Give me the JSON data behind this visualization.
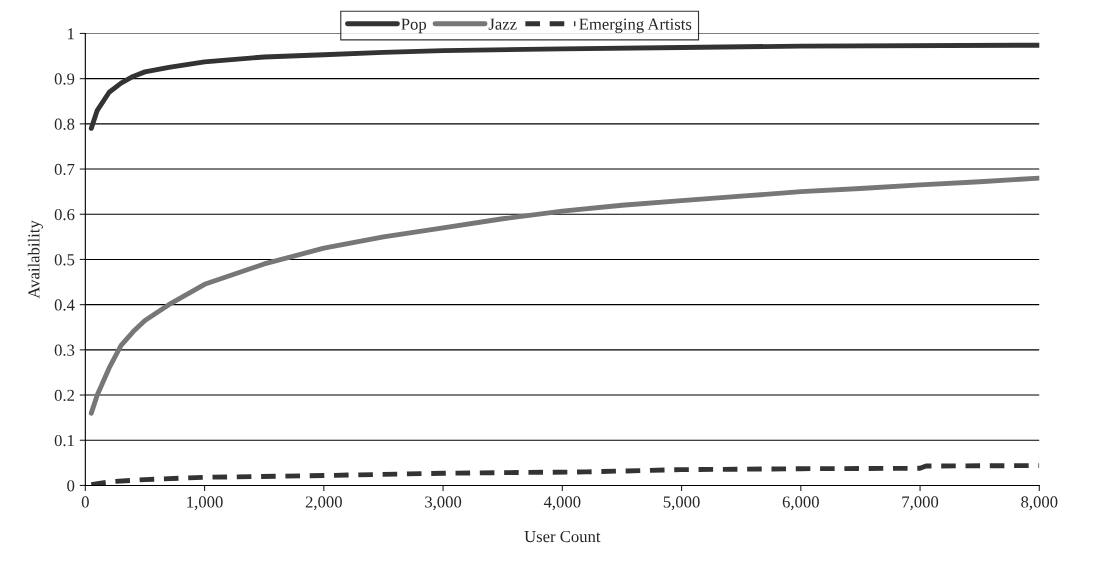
{
  "chart_data": {
    "type": "line",
    "xlabel": "User Count",
    "ylabel": "Availability",
    "xlim": [
      0,
      8000
    ],
    "ylim": [
      0,
      1
    ],
    "xticks": [
      0,
      {
        "value": 1000,
        "label": "1,000"
      },
      {
        "value": 2000,
        "label": "2,000"
      },
      {
        "value": 3000,
        "label": "3,000"
      },
      {
        "value": 4000,
        "label": "4,000"
      },
      {
        "value": 5000,
        "label": "5,000"
      },
      {
        "value": 6000,
        "label": "6,000"
      },
      {
        "value": 7000,
        "label": "7,000"
      },
      {
        "value": 8000,
        "label": "8,000"
      }
    ],
    "yticks": [
      0,
      0.1,
      0.2,
      0.3,
      0.4,
      0.5,
      0.6,
      0.7,
      0.8,
      0.9,
      1
    ],
    "grid": "y",
    "legend": "top",
    "marker": "none",
    "series": [
      {
        "name": "Pop",
        "color": "#333333",
        "line_style": "solid",
        "x": [
          50,
          100,
          200,
          300,
          400,
          500,
          700,
          1000,
          1500,
          2000,
          2500,
          3000,
          4000,
          5000,
          6000,
          8000
        ],
        "values": [
          0.79,
          0.83,
          0.87,
          0.89,
          0.905,
          0.915,
          0.925,
          0.937,
          0.948,
          0.953,
          0.958,
          0.962,
          0.966,
          0.969,
          0.972,
          0.974
        ]
      },
      {
        "name": "Jazz",
        "color": "#777777",
        "line_style": "solid",
        "x": [
          50,
          100,
          200,
          300,
          400,
          500,
          700,
          1000,
          1500,
          2000,
          2500,
          3000,
          3500,
          4000,
          4500,
          5000,
          5500,
          6000,
          6500,
          7000,
          7500,
          8000
        ],
        "values": [
          0.16,
          0.2,
          0.26,
          0.31,
          0.34,
          0.365,
          0.4,
          0.445,
          0.49,
          0.525,
          0.55,
          0.57,
          0.59,
          0.607,
          0.62,
          0.63,
          0.64,
          0.65,
          0.657,
          0.665,
          0.672,
          0.68
        ]
      },
      {
        "name": "Emerging Artists",
        "color": "#333333",
        "line_style": "dashed",
        "x": [
          50,
          200,
          500,
          1000,
          2000,
          3000,
          4200,
          5000,
          6000,
          7000,
          7050,
          8000
        ],
        "values": [
          0.002,
          0.008,
          0.013,
          0.018,
          0.022,
          0.027,
          0.03,
          0.035,
          0.037,
          0.038,
          0.043,
          0.044
        ]
      }
    ]
  }
}
